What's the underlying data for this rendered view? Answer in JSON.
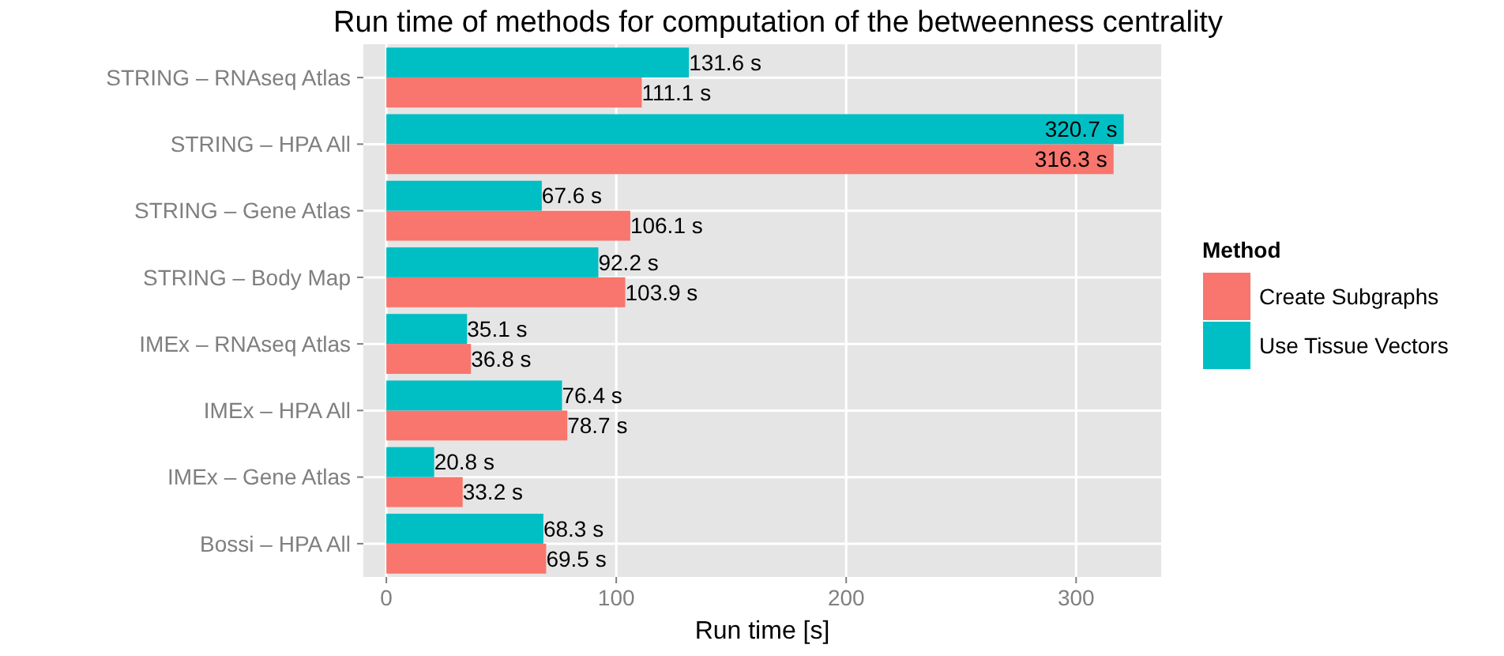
{
  "chart_data": {
    "type": "bar",
    "orientation": "horizontal",
    "title": "Run time of methods for computation of the betweenness centrality",
    "xlabel": "Run time [s]",
    "legend_title": "Method",
    "categories": [
      "STRING – RNAseq Atlas",
      "STRING – HPA All",
      "STRING – Gene Atlas",
      "STRING – Body Map",
      "IMEx – RNAseq Atlas",
      "IMEx – HPA All",
      "IMEx – Gene Atlas",
      "Bossi – HPA All"
    ],
    "series": [
      {
        "name": "Create Subgraphs",
        "color": "#f8766d",
        "values": [
          111.1,
          316.3,
          106.1,
          103.9,
          36.8,
          78.7,
          33.2,
          69.5
        ],
        "value_labels": [
          "111.1 s",
          "316.3 s",
          "106.1 s",
          "103.9 s",
          "36.8 s",
          "78.7 s",
          "33.2 s",
          "69.5 s"
        ]
      },
      {
        "name": "Use Tissue Vectors",
        "color": "#00bfc4",
        "values": [
          131.6,
          320.7,
          67.6,
          92.2,
          35.1,
          76.4,
          20.8,
          68.3
        ],
        "value_labels": [
          "131.6 s",
          "320.7 s",
          "67.6 s",
          "92.2 s",
          "35.1 s",
          "76.4 s",
          "20.8 s",
          "68.3 s"
        ]
      }
    ],
    "xlim": [
      -10,
      337
    ],
    "xticks": [
      0,
      100,
      200,
      300
    ],
    "grid": true,
    "legend": "right"
  }
}
